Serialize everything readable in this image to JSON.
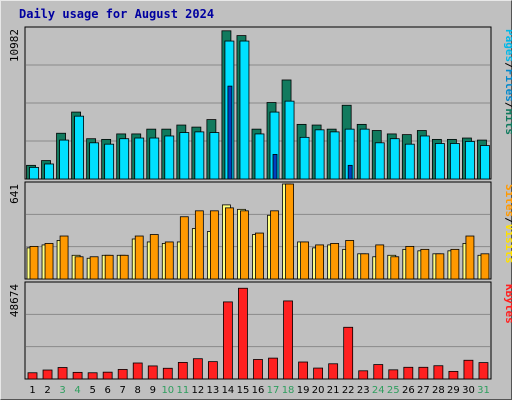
{
  "title": "Daily usage for August 2024",
  "colors": {
    "background": "#c0c0c0",
    "plot_bg": "#c0c0c0",
    "grid": "#8a8a8a",
    "hits": "#117a5e",
    "files": "#00e0ff",
    "pages": "#00b8e8",
    "visits": "#ffff80",
    "sites": "#ff9900",
    "kbytes": "#ff2020",
    "weekend_label": "#2e9e5e",
    "weekday_label": "#000000",
    "title": "#0000a0"
  },
  "chart_data": [
    {
      "type": "bar",
      "name": "hits-files-pages",
      "y_max_label": "10982",
      "ymax": 10982,
      "side_label": [
        "Pages",
        "/",
        "Files",
        "/",
        "Hits"
      ],
      "side_label_colors": [
        "#00b8e8",
        "#000000",
        "#0088cc",
        "#000000",
        "#117a5e"
      ],
      "categories": [
        "1",
        "2",
        "3",
        "4",
        "5",
        "6",
        "7",
        "8",
        "9",
        "10",
        "11",
        "12",
        "13",
        "14",
        "15",
        "16",
        "17",
        "18",
        "19",
        "20",
        "21",
        "22",
        "23",
        "24",
        "25",
        "26",
        "27",
        "28",
        "29",
        "30",
        "31"
      ],
      "series": [
        {
          "name": "Hits",
          "values": [
            1000,
            1350,
            3350,
            4900,
            2950,
            2900,
            3300,
            3300,
            3650,
            3650,
            3950,
            3800,
            4350,
            10850,
            10500,
            3650,
            5600,
            7250,
            4000,
            3950,
            3650,
            5400,
            4000,
            3550,
            3300,
            3250,
            3550,
            2900,
            2900,
            3000,
            2850
          ]
        },
        {
          "name": "Files",
          "values": [
            850,
            1100,
            2850,
            4600,
            2650,
            2550,
            2950,
            3000,
            3000,
            3150,
            3400,
            3450,
            3400,
            10100,
            10100,
            3300,
            4900,
            5700,
            3050,
            3600,
            3450,
            3650,
            3650,
            2650,
            2950,
            2550,
            3150,
            2600,
            2600,
            2750,
            2450
          ]
        },
        {
          "name": "Pages",
          "values": [
            0,
            0,
            0,
            0,
            0,
            0,
            0,
            0,
            0,
            0,
            0,
            0,
            0,
            6800,
            0,
            0,
            1800,
            0,
            0,
            0,
            0,
            1000,
            0,
            0,
            0,
            0,
            0,
            0,
            0,
            0,
            0
          ]
        }
      ]
    },
    {
      "type": "bar",
      "name": "visits-sites",
      "y_max_label": "641",
      "ymax": 641,
      "side_label": [
        "Sites",
        "/",
        "Visits"
      ],
      "side_label_colors": [
        "#ff9900",
        "#000000",
        "#ffe000"
      ],
      "categories": [
        "1",
        "2",
        "3",
        "4",
        "5",
        "6",
        "7",
        "8",
        "9",
        "10",
        "11",
        "12",
        "13",
        "14",
        "15",
        "16",
        "17",
        "18",
        "19",
        "20",
        "21",
        "22",
        "23",
        "24",
        "25",
        "26",
        "27",
        "28",
        "29",
        "30",
        "31"
      ],
      "series": [
        {
          "name": "Visits",
          "values": [
            210,
            230,
            260,
            160,
            140,
            160,
            160,
            270,
            250,
            240,
            250,
            340,
            320,
            500,
            470,
            300,
            430,
            641,
            250,
            210,
            230,
            200,
            170,
            150,
            160,
            200,
            190,
            170,
            190,
            240,
            160
          ]
        },
        {
          "name": "Sites",
          "values": [
            220,
            240,
            290,
            150,
            150,
            160,
            160,
            290,
            300,
            250,
            420,
            460,
            460,
            480,
            460,
            310,
            460,
            641,
            250,
            230,
            240,
            260,
            170,
            230,
            150,
            220,
            200,
            170,
            200,
            290,
            170
          ]
        }
      ]
    },
    {
      "type": "bar",
      "name": "kbytes",
      "y_max_label": "48674",
      "ymax": 48674,
      "side_label": [
        "KBytes"
      ],
      "side_label_colors": [
        "#ff2020"
      ],
      "categories": [
        "1",
        "2",
        "3",
        "4",
        "5",
        "6",
        "7",
        "8",
        "9",
        "10",
        "11",
        "12",
        "13",
        "14",
        "15",
        "16",
        "17",
        "18",
        "19",
        "20",
        "21",
        "22",
        "23",
        "24",
        "25",
        "26",
        "27",
        "28",
        "29",
        "30",
        "31"
      ],
      "series": [
        {
          "name": "KBytes",
          "values": [
            3200,
            4600,
            5900,
            3400,
            3200,
            3500,
            4900,
            8200,
            6700,
            5500,
            8500,
            10400,
            8900,
            39500,
            46500,
            10000,
            10700,
            40000,
            8700,
            5600,
            7800,
            26500,
            4200,
            7400,
            4700,
            6000,
            6000,
            6800,
            3900,
            9600,
            8400
          ]
        }
      ]
    }
  ],
  "x_labels": [
    "1",
    "2",
    "3",
    "4",
    "5",
    "6",
    "7",
    "8",
    "9",
    "10",
    "11",
    "12",
    "13",
    "14",
    "15",
    "16",
    "17",
    "18",
    "19",
    "20",
    "21",
    "22",
    "23",
    "24",
    "25",
    "26",
    "27",
    "28",
    "29",
    "30",
    "31"
  ],
  "weekend_days": [
    "3",
    "4",
    "10",
    "11",
    "17",
    "18",
    "24",
    "25",
    "31"
  ]
}
